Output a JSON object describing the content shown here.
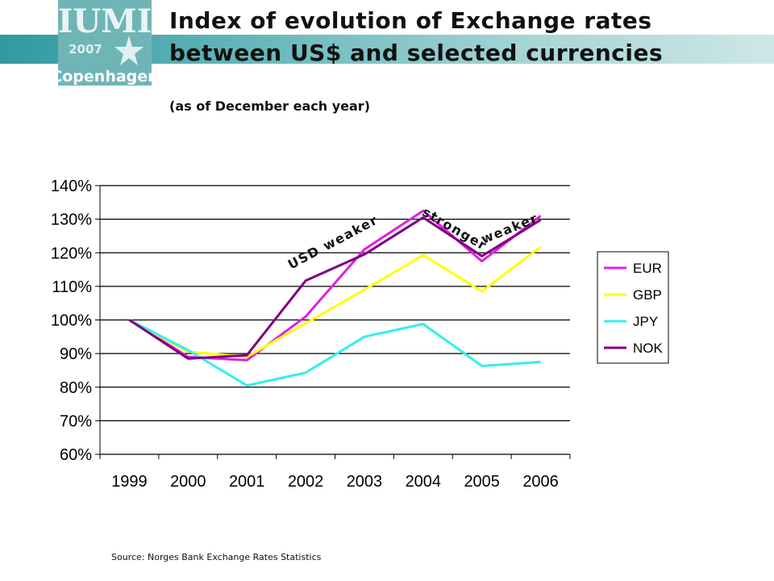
{
  "header": {
    "title_line1": "Index of evolution of Exchange rates",
    "title_line2": "between US$ and selected currencies",
    "subtitle": "(as of December each year)",
    "logo": {
      "line1": "IUMI",
      "line2": "2007",
      "line3": "Copenhagen"
    }
  },
  "footer": {
    "source": "Source: Norges Bank Exchange  Rates Statistics"
  },
  "colors": {
    "band_start": "#2f9aa0",
    "band_end": "#cde7e6",
    "logo_bg": "#6fb5b6"
  },
  "chart_data": {
    "type": "line",
    "title": "",
    "xlabel": "",
    "ylabel": "",
    "categories": [
      "1999",
      "2000",
      "2001",
      "2002",
      "2003",
      "2004",
      "2005",
      "2006"
    ],
    "y_ticks": [
      "140%",
      "130%",
      "120%",
      "110%",
      "100%",
      "90%",
      "80%",
      "70%",
      "60%"
    ],
    "ylim": [
      60,
      140
    ],
    "y_unit": "%",
    "grid": true,
    "legend_position": "right",
    "series": [
      {
        "name": "EUR",
        "color": "#e020e0",
        "values": [
          100,
          89,
          88,
          101,
          121,
          132.5,
          117.5,
          131
        ]
      },
      {
        "name": "GBP",
        "color": "#ffff00",
        "values": [
          100,
          90.5,
          89,
          99,
          109,
          119.3,
          108.5,
          121.8
        ]
      },
      {
        "name": "JPY",
        "color": "#33eeee",
        "values": [
          100,
          91,
          80.5,
          84.3,
          95,
          98.8,
          86.3,
          87.5
        ]
      },
      {
        "name": "NOK",
        "color": "#800080",
        "values": [
          100,
          88.5,
          89.5,
          111.7,
          119.5,
          130.5,
          119,
          129.8
        ]
      }
    ],
    "annotations": [
      {
        "text": "USD weaker",
        "at_category": "2002.5",
        "at_value": 122
      },
      {
        "text": "stronger",
        "at_category": "2004.5",
        "at_value": 126
      },
      {
        "text": "weaker",
        "at_category": "2005.5",
        "at_value": 126
      }
    ]
  }
}
